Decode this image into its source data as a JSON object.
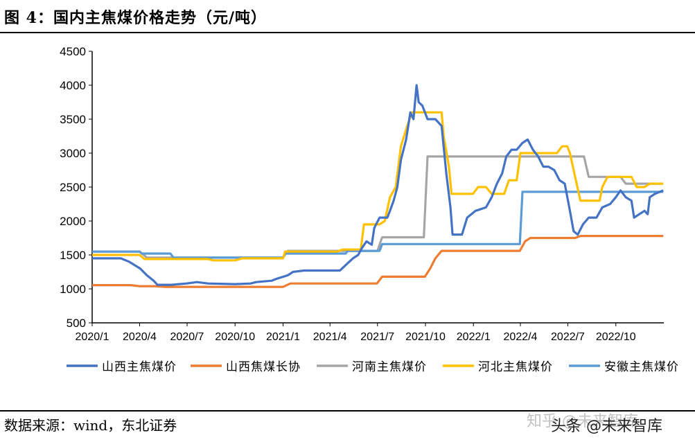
{
  "header": {
    "title": "图 4：国内主焦煤价格走势（元/吨）"
  },
  "footer": {
    "source": "数据来源：wind，东北证券",
    "watermark_brand": "知乎 @未来智库",
    "watermark_overlay": "头条 @未来智库"
  },
  "chart_data": {
    "type": "line",
    "title": "",
    "xlabel": "",
    "ylabel": "",
    "ylim": [
      500,
      4500
    ],
    "yticks": [
      500,
      1000,
      1500,
      2000,
      2500,
      3000,
      3500,
      4000,
      4500
    ],
    "xlim": [
      "2020-01-01",
      "2023-01-01"
    ],
    "xticks": [
      {
        "date": "2020-01-01",
        "label": "2020/1"
      },
      {
        "date": "2020-04-01",
        "label": "2020/4"
      },
      {
        "date": "2020-07-01",
        "label": "2020/7"
      },
      {
        "date": "2020-10-01",
        "label": "2020/10"
      },
      {
        "date": "2021-01-01",
        "label": "2021/1"
      },
      {
        "date": "2021-04-01",
        "label": "2021/4"
      },
      {
        "date": "2021-07-01",
        "label": "2021/7"
      },
      {
        "date": "2021-10-01",
        "label": "2021/10"
      },
      {
        "date": "2022-01-01",
        "label": "2022/1"
      },
      {
        "date": "2022-04-01",
        "label": "2022/4"
      },
      {
        "date": "2022-07-01",
        "label": "2022/7"
      },
      {
        "date": "2022-10-01",
        "label": "2022/10"
      }
    ],
    "grid": false,
    "legend_position": "bottom",
    "series": [
      {
        "name": "山西主焦煤价",
        "color": "#4472C4",
        "points": [
          [
            "2020-01-01",
            1450
          ],
          [
            "2020-02-25",
            1450
          ],
          [
            "2020-03-12",
            1400
          ],
          [
            "2020-04-02",
            1300
          ],
          [
            "2020-04-15",
            1200
          ],
          [
            "2020-04-28",
            1120
          ],
          [
            "2020-05-05",
            1060
          ],
          [
            "2020-06-01",
            1060
          ],
          [
            "2020-06-30",
            1080
          ],
          [
            "2020-07-20",
            1100
          ],
          [
            "2020-08-10",
            1080
          ],
          [
            "2020-10-01",
            1070
          ],
          [
            "2020-10-31",
            1080
          ],
          [
            "2020-11-10",
            1100
          ],
          [
            "2020-12-10",
            1120
          ],
          [
            "2020-12-20",
            1150
          ],
          [
            "2021-01-10",
            1200
          ],
          [
            "2021-01-20",
            1250
          ],
          [
            "2021-02-10",
            1270
          ],
          [
            "2021-03-15",
            1270
          ],
          [
            "2021-04-20",
            1270
          ],
          [
            "2021-05-01",
            1350
          ],
          [
            "2021-05-15",
            1450
          ],
          [
            "2021-05-25",
            1500
          ],
          [
            "2021-06-01",
            1600
          ],
          [
            "2021-06-10",
            1700
          ],
          [
            "2021-06-20",
            1650
          ],
          [
            "2021-06-25",
            1900
          ],
          [
            "2021-07-05",
            2050
          ],
          [
            "2021-07-20",
            2050
          ],
          [
            "2021-07-25",
            2150
          ],
          [
            "2021-08-01",
            2300
          ],
          [
            "2021-08-08",
            2500
          ],
          [
            "2021-08-15",
            2900
          ],
          [
            "2021-08-25",
            3200
          ],
          [
            "2021-09-02",
            3600
          ],
          [
            "2021-09-08",
            3500
          ],
          [
            "2021-09-14",
            4000
          ],
          [
            "2021-09-18",
            3750
          ],
          [
            "2021-09-25",
            3700
          ],
          [
            "2021-10-05",
            3500
          ],
          [
            "2021-10-20",
            3500
          ],
          [
            "2021-11-01",
            3400
          ],
          [
            "2021-11-10",
            2700
          ],
          [
            "2021-11-18",
            2200
          ],
          [
            "2021-11-22",
            1800
          ],
          [
            "2021-12-10",
            1800
          ],
          [
            "2021-12-20",
            2050
          ],
          [
            "2022-01-05",
            2150
          ],
          [
            "2022-01-25",
            2200
          ],
          [
            "2022-02-05",
            2350
          ],
          [
            "2022-02-15",
            2550
          ],
          [
            "2022-02-25",
            2700
          ],
          [
            "2022-03-05",
            2950
          ],
          [
            "2022-03-15",
            3050
          ],
          [
            "2022-03-25",
            3050
          ],
          [
            "2022-04-05",
            3150
          ],
          [
            "2022-04-15",
            3200
          ],
          [
            "2022-04-25",
            3050
          ],
          [
            "2022-05-05",
            2950
          ],
          [
            "2022-05-15",
            2800
          ],
          [
            "2022-05-25",
            2800
          ],
          [
            "2022-06-05",
            2750
          ],
          [
            "2022-06-15",
            2600
          ],
          [
            "2022-06-25",
            2550
          ],
          [
            "2022-07-05",
            2150
          ],
          [
            "2022-07-12",
            1850
          ],
          [
            "2022-07-20",
            1800
          ],
          [
            "2022-07-30",
            1950
          ],
          [
            "2022-08-10",
            2050
          ],
          [
            "2022-08-25",
            2050
          ],
          [
            "2022-09-05",
            2200
          ],
          [
            "2022-09-20",
            2250
          ],
          [
            "2022-10-01",
            2350
          ],
          [
            "2022-10-10",
            2450
          ],
          [
            "2022-10-20",
            2350
          ],
          [
            "2022-10-31",
            2300
          ],
          [
            "2022-11-05",
            2050
          ],
          [
            "2022-11-15",
            2100
          ],
          [
            "2022-11-25",
            2150
          ],
          [
            "2022-12-01",
            2100
          ],
          [
            "2022-12-05",
            2350
          ],
          [
            "2022-12-15",
            2400
          ],
          [
            "2022-12-31",
            2450
          ]
        ]
      },
      {
        "name": "山西焦煤长协",
        "color": "#ED7D31",
        "points": [
          [
            "2020-01-01",
            1055
          ],
          [
            "2020-03-15",
            1055
          ],
          [
            "2020-04-01",
            1040
          ],
          [
            "2020-05-01",
            1040
          ],
          [
            "2020-05-20",
            1030
          ],
          [
            "2021-01-01",
            1030
          ],
          [
            "2021-01-15",
            1080
          ],
          [
            "2021-06-30",
            1080
          ],
          [
            "2021-07-10",
            1180
          ],
          [
            "2021-09-30",
            1180
          ],
          [
            "2021-10-10",
            1300
          ],
          [
            "2021-10-20",
            1450
          ],
          [
            "2021-11-01",
            1560
          ],
          [
            "2022-03-31",
            1560
          ],
          [
            "2022-04-10",
            1700
          ],
          [
            "2022-04-20",
            1750
          ],
          [
            "2022-07-15",
            1750
          ],
          [
            "2022-07-25",
            1780
          ],
          [
            "2022-12-31",
            1780
          ]
        ]
      },
      {
        "name": "河南主焦煤价",
        "color": "#A5A5A5",
        "points": [
          [
            "2020-01-01",
            1550
          ],
          [
            "2020-04-01",
            1550
          ],
          [
            "2020-04-15",
            1460
          ],
          [
            "2021-01-01",
            1460
          ],
          [
            "2021-01-10",
            1560
          ],
          [
            "2021-07-01",
            1560
          ],
          [
            "2021-07-10",
            1760
          ],
          [
            "2021-09-28",
            1760
          ],
          [
            "2021-10-05",
            2950
          ],
          [
            "2022-08-01",
            2950
          ],
          [
            "2022-08-10",
            2650
          ],
          [
            "2022-10-10",
            2650
          ],
          [
            "2022-10-20",
            2550
          ],
          [
            "2022-12-31",
            2550
          ]
        ]
      },
      {
        "name": "河北主焦煤价",
        "color": "#FFC000",
        "points": [
          [
            "2020-01-01",
            1500
          ],
          [
            "2020-04-01",
            1500
          ],
          [
            "2020-04-10",
            1440
          ],
          [
            "2020-08-10",
            1440
          ],
          [
            "2020-08-20",
            1420
          ],
          [
            "2020-10-01",
            1420
          ],
          [
            "2020-10-15",
            1450
          ],
          [
            "2021-01-01",
            1450
          ],
          [
            "2021-01-05",
            1550
          ],
          [
            "2021-04-15",
            1550
          ],
          [
            "2021-04-25",
            1580
          ],
          [
            "2021-05-30",
            1580
          ],
          [
            "2021-06-05",
            1950
          ],
          [
            "2021-06-25",
            1950
          ],
          [
            "2021-07-05",
            1950
          ],
          [
            "2021-07-15",
            2000
          ],
          [
            "2021-07-25",
            2350
          ],
          [
            "2021-08-05",
            2500
          ],
          [
            "2021-08-15",
            3100
          ],
          [
            "2021-08-25",
            3350
          ],
          [
            "2021-09-05",
            3600
          ],
          [
            "2021-11-01",
            3600
          ],
          [
            "2021-11-05",
            3250
          ],
          [
            "2021-11-15",
            2800
          ],
          [
            "2021-11-20",
            2400
          ],
          [
            "2021-12-31",
            2400
          ],
          [
            "2022-01-10",
            2500
          ],
          [
            "2022-01-25",
            2500
          ],
          [
            "2022-02-05",
            2400
          ],
          [
            "2022-03-01",
            2400
          ],
          [
            "2022-03-10",
            2600
          ],
          [
            "2022-03-25",
            2600
          ],
          [
            "2022-04-01",
            3000
          ],
          [
            "2022-06-10",
            3000
          ],
          [
            "2022-06-20",
            3100
          ],
          [
            "2022-06-30",
            3100
          ],
          [
            "2022-07-05",
            3000
          ],
          [
            "2022-07-15",
            2650
          ],
          [
            "2022-07-25",
            2300
          ],
          [
            "2022-08-31",
            2300
          ],
          [
            "2022-09-05",
            2500
          ],
          [
            "2022-09-15",
            2650
          ],
          [
            "2022-10-31",
            2650
          ],
          [
            "2022-11-10",
            2500
          ],
          [
            "2022-11-25",
            2500
          ],
          [
            "2022-12-05",
            2550
          ],
          [
            "2022-12-31",
            2550
          ]
        ]
      },
      {
        "name": "安徽主焦煤价",
        "color": "#5B9BD5",
        "points": [
          [
            "2020-01-01",
            1550
          ],
          [
            "2020-04-01",
            1550
          ],
          [
            "2020-04-05",
            1520
          ],
          [
            "2020-05-30",
            1520
          ],
          [
            "2020-06-05",
            1460
          ],
          [
            "2021-01-01",
            1460
          ],
          [
            "2021-01-05",
            1520
          ],
          [
            "2021-05-01",
            1520
          ],
          [
            "2021-05-05",
            1560
          ],
          [
            "2021-07-05",
            1560
          ],
          [
            "2021-07-10",
            1660
          ],
          [
            "2022-03-31",
            1660
          ],
          [
            "2022-04-05",
            2430
          ],
          [
            "2022-12-31",
            2430
          ]
        ]
      }
    ]
  }
}
